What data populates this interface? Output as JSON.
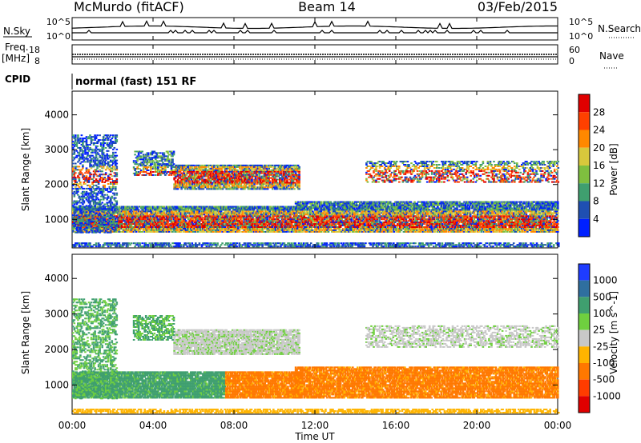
{
  "header": {
    "site": "McMurdo (fitACF)",
    "beam": "Beam 14",
    "date": "03/Feb/2015"
  },
  "status_panels": {
    "nsky_label": "N.Sky",
    "nsearch_label": "N.Search",
    "nsky_ticks": [
      "10^5",
      "10^0"
    ],
    "nsearch_ticks": [
      "10^5",
      "10^0"
    ],
    "freq_label": "Freq.",
    "freq_unit": "[MHz]",
    "freq_ticks": [
      "18",
      "8"
    ],
    "nave_label": "Nave",
    "nave_ticks": [
      "60",
      "0"
    ],
    "cpid_label": "CPID",
    "cpid_text": "normal (fast) 151 RF"
  },
  "chart_data": [
    {
      "type": "heatmap",
      "name": "power",
      "ylabel": "Slant Range [km]",
      "yticks": [
        "4000",
        "3000",
        "2000",
        "1000"
      ],
      "ylim": [
        180,
        4680
      ],
      "xlim": [
        0,
        24
      ],
      "colorbar_label": "Power [dB]",
      "colorbar_ticks": [
        "28",
        "24",
        "20",
        "16",
        "12",
        "8",
        "4"
      ],
      "colors": [
        "#0020ff",
        "#1f4fb2",
        "#3f9f6f",
        "#7fbf3f",
        "#d8c83c",
        "#ff8800",
        "#ff4000",
        "#e00000"
      ]
    },
    {
      "type": "heatmap",
      "name": "velocity",
      "ylabel": "Slant Range [km]",
      "yticks": [
        "4000",
        "3000",
        "2000",
        "1000"
      ],
      "ylim": [
        180,
        4680
      ],
      "xlim": [
        0,
        24
      ],
      "xticks": [
        "00:00",
        "04:00",
        "08:00",
        "12:00",
        "16:00",
        "20:00",
        "00:00"
      ],
      "xlabel": "Time UT",
      "colorbar_label": "Velocity [m s^-1]",
      "colorbar_ticks": [
        "1000",
        "500",
        "100",
        "25",
        "-25",
        "-100",
        "-500",
        "-1000"
      ],
      "colors": [
        "#1e3cff",
        "#2f6f9f",
        "#3f9f6f",
        "#6fcf3f",
        "#c8c8c8",
        "#ffb400",
        "#ff7800",
        "#ff3c00",
        "#e00000"
      ]
    }
  ]
}
